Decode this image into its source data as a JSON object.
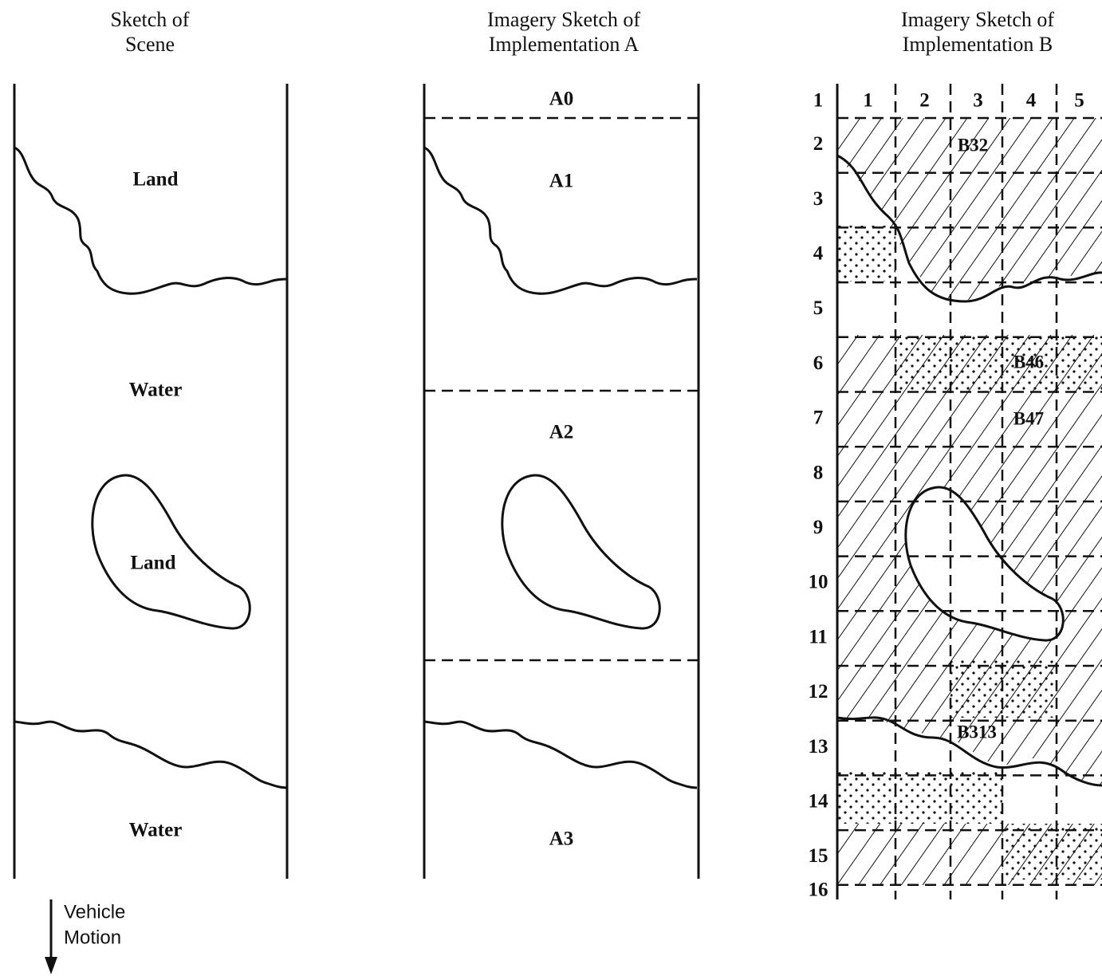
{
  "panels": [
    {
      "title_lines": [
        "Sketch of",
        "Scene"
      ],
      "labels": [
        "Land",
        "Water",
        "Land",
        "Water"
      ],
      "motion_lines": [
        "Vehicle",
        "Motion"
      ]
    },
    {
      "title_lines": [
        "Imagery Sketch of",
        "Implementation A"
      ],
      "labels": [
        "A0",
        "A1",
        "A2",
        "A3"
      ]
    },
    {
      "title_lines": [
        "Imagery Sketch of",
        "Implementation B"
      ],
      "column_numbers": [
        1,
        2,
        3,
        4,
        5
      ],
      "row_numbers": [
        1,
        2,
        3,
        4,
        5,
        6,
        7,
        8,
        9,
        10,
        11,
        12,
        13,
        14,
        15,
        16
      ],
      "cell_labels": [
        "B32",
        "B46",
        "B47",
        "B313"
      ]
    }
  ]
}
